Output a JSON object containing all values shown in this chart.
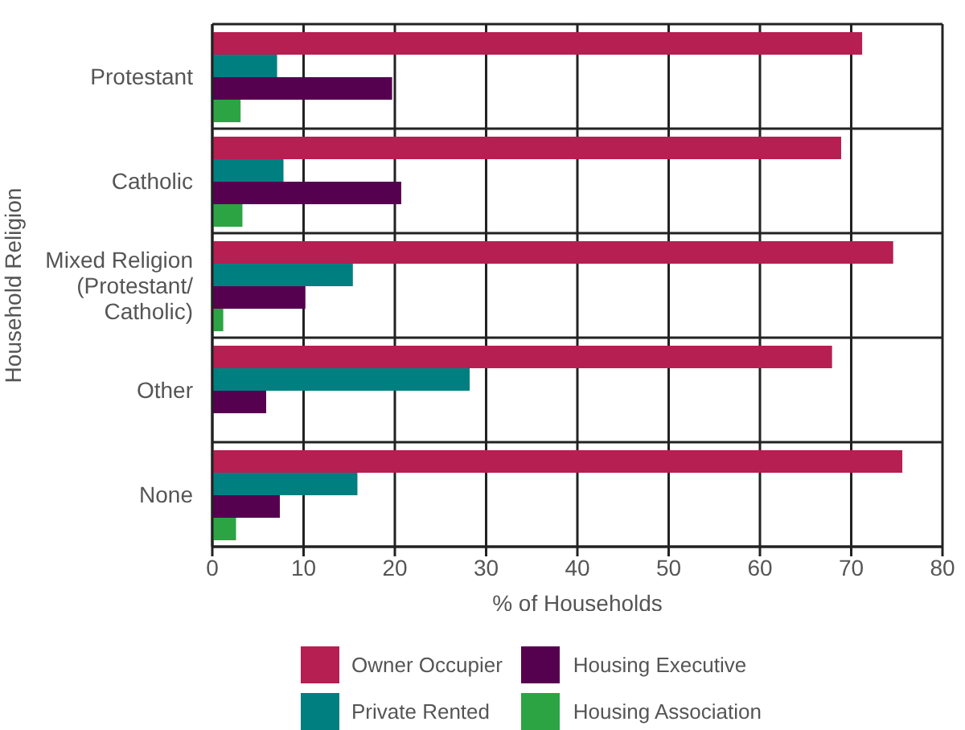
{
  "chart_data": {
    "type": "bar",
    "orientation": "horizontal",
    "xlabel": "% of Households",
    "ylabel": "Household Religion",
    "categories": [
      "Protestant",
      "Catholic",
      "Mixed Religion (Protestant/Catholic)",
      "Other",
      "None"
    ],
    "series": [
      {
        "name": "Owner Occupier",
        "color": "#b51f51",
        "values": [
          71.2,
          68.9,
          74.6,
          67.9,
          75.6
        ]
      },
      {
        "name": "Private Rented",
        "color": "#007f80",
        "values": [
          7.1,
          7.8,
          15.4,
          28.2,
          15.9
        ]
      },
      {
        "name": "Housing Executive",
        "color": "#560050",
        "values": [
          19.7,
          20.7,
          10.2,
          5.9,
          7.4
        ]
      },
      {
        "name": "Housing Association",
        "color": "#2ca444",
        "values": [
          3.1,
          3.3,
          1.2,
          null,
          2.6
        ]
      }
    ],
    "xlim": [
      0,
      80
    ],
    "xticks": [
      0,
      10,
      20,
      30,
      40,
      50,
      60,
      70,
      80
    ],
    "grid": true,
    "legend": "bottom"
  }
}
